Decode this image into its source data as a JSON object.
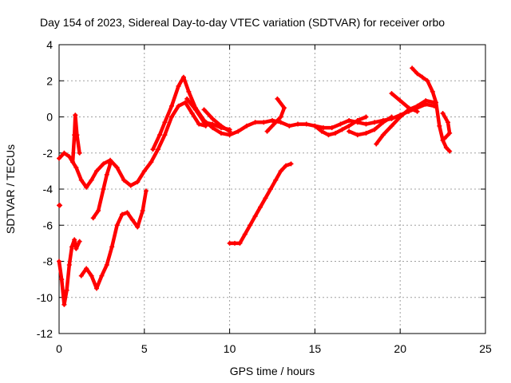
{
  "chart_data": {
    "type": "scatter",
    "title": "Day 154 of 2023, Sidereal Day-to-day VTEC variation (SDTVAR) for receiver orbo",
    "xlabel": "GPS time / hours",
    "ylabel": "SDTVAR / TECUs",
    "xlim": [
      0,
      25
    ],
    "ylim": [
      -12,
      4
    ],
    "xticks": [
      "0",
      "5",
      "10",
      "15",
      "20",
      "25"
    ],
    "yticks": [
      "4",
      "2",
      "0",
      "-2",
      "-4",
      "-6",
      "-8",
      "-10",
      "-12"
    ],
    "grid": true,
    "marker_color": "#ff0000",
    "series": [
      {
        "values": [
          [
            0,
            -4.9
          ],
          [
            0.05,
            -4.9
          ]
        ]
      },
      {
        "values": [
          [
            0,
            -2.3
          ],
          [
            0.3,
            -2.0
          ],
          [
            0.6,
            -2.2
          ],
          [
            1.0,
            -2.8
          ],
          [
            1.3,
            -3.5
          ],
          [
            1.6,
            -3.9
          ],
          [
            1.9,
            -3.5
          ],
          [
            2.2,
            -3.0
          ],
          [
            2.6,
            -2.6
          ],
          [
            3.0,
            -2.4
          ],
          [
            3.4,
            -2.8
          ],
          [
            3.8,
            -3.5
          ],
          [
            4.2,
            -3.8
          ],
          [
            4.6,
            -3.6
          ],
          [
            5.0,
            -3.0
          ],
          [
            5.4,
            -2.5
          ],
          [
            5.8,
            -1.8
          ],
          [
            6.2,
            -1.0
          ],
          [
            6.6,
            0.0
          ],
          [
            7.0,
            0.6
          ],
          [
            7.4,
            0.8
          ],
          [
            7.8,
            0.2
          ],
          [
            8.2,
            -0.4
          ],
          [
            8.6,
            -0.5
          ]
        ]
      },
      {
        "values": [
          [
            0.0,
            -8.0
          ],
          [
            0.15,
            -9.0
          ],
          [
            0.3,
            -10.4
          ],
          [
            0.45,
            -9.6
          ],
          [
            0.6,
            -8.2
          ],
          [
            0.75,
            -7.2
          ],
          [
            0.9,
            -6.8
          ],
          [
            1.0,
            -7.3
          ],
          [
            1.2,
            -6.9
          ]
        ]
      },
      {
        "values": [
          [
            0.8,
            -2.5
          ],
          [
            0.9,
            -1.0
          ],
          [
            0.95,
            0.1
          ],
          [
            1.05,
            -1.0
          ],
          [
            1.2,
            -2.0
          ]
        ]
      },
      {
        "values": [
          [
            1.3,
            -8.8
          ],
          [
            1.6,
            -8.4
          ],
          [
            1.9,
            -8.8
          ],
          [
            2.2,
            -9.5
          ],
          [
            2.5,
            -8.8
          ],
          [
            2.8,
            -8.2
          ],
          [
            3.1,
            -7.2
          ],
          [
            3.4,
            -6.0
          ],
          [
            3.7,
            -5.4
          ],
          [
            4.0,
            -5.3
          ],
          [
            4.3,
            -5.7
          ],
          [
            4.6,
            -6.1
          ],
          [
            4.9,
            -5.2
          ],
          [
            5.1,
            -4.1
          ]
        ]
      },
      {
        "values": [
          [
            2.0,
            -5.6
          ],
          [
            2.3,
            -5.2
          ],
          [
            2.6,
            -4.0
          ],
          [
            2.8,
            -3.2
          ],
          [
            3.0,
            -2.6
          ]
        ]
      },
      {
        "values": [
          [
            5.5,
            -1.8
          ],
          [
            5.9,
            -1.0
          ],
          [
            6.2,
            -0.3
          ],
          [
            6.6,
            0.6
          ],
          [
            7.0,
            1.7
          ],
          [
            7.3,
            2.2
          ],
          [
            7.6,
            1.4
          ],
          [
            8.0,
            0.5
          ],
          [
            8.5,
            -0.2
          ],
          [
            9.0,
            -0.6
          ],
          [
            9.5,
            -0.9
          ],
          [
            10.0,
            -1.0
          ],
          [
            10.5,
            -0.8
          ],
          [
            11.0,
            -0.5
          ],
          [
            11.5,
            -0.3
          ],
          [
            12.0,
            -0.3
          ],
          [
            12.5,
            -0.2
          ],
          [
            13.0,
            -0.3
          ],
          [
            13.5,
            -0.5
          ],
          [
            14.0,
            -0.4
          ],
          [
            14.5,
            -0.4
          ],
          [
            15.0,
            -0.5
          ],
          [
            15.5,
            -0.6
          ],
          [
            16.0,
            -0.6
          ],
          [
            16.5,
            -0.4
          ],
          [
            17.0,
            -0.2
          ],
          [
            17.5,
            -0.3
          ],
          [
            18.0,
            -0.4
          ],
          [
            18.5,
            -0.3
          ],
          [
            19.0,
            -0.2
          ],
          [
            19.5,
            -0.1
          ],
          [
            20.0,
            0.1
          ],
          [
            20.5,
            0.3
          ],
          [
            21.0,
            0.5
          ],
          [
            21.5,
            0.7
          ],
          [
            22.0,
            0.6
          ]
        ]
      },
      {
        "values": [
          [
            7.5,
            1.0
          ],
          [
            8.0,
            0.4
          ],
          [
            8.5,
            -0.3
          ],
          [
            9.0,
            -0.4
          ],
          [
            9.5,
            -0.6
          ],
          [
            10.0,
            -0.7
          ]
        ]
      },
      {
        "values": [
          [
            8.5,
            0.4
          ],
          [
            9.0,
            -0.1
          ],
          [
            9.5,
            -0.5
          ],
          [
            10.0,
            -0.8
          ]
        ]
      },
      {
        "values": [
          [
            10.0,
            -7.0
          ],
          [
            10.3,
            -7.0
          ],
          [
            10.6,
            -7.0
          ],
          [
            10.9,
            -6.5
          ],
          [
            11.2,
            -6.0
          ],
          [
            11.5,
            -5.5
          ],
          [
            11.8,
            -5.0
          ],
          [
            12.1,
            -4.5
          ],
          [
            12.4,
            -4.0
          ],
          [
            12.7,
            -3.5
          ],
          [
            13.0,
            -3.0
          ],
          [
            13.3,
            -2.7
          ],
          [
            13.6,
            -2.6
          ]
        ]
      },
      {
        "values": [
          [
            12.2,
            -0.8
          ],
          [
            12.6,
            -0.4
          ],
          [
            13.0,
            0.0
          ],
          [
            13.2,
            0.5
          ],
          [
            12.8,
            1.0
          ]
        ]
      },
      {
        "values": [
          [
            15.0,
            -0.5
          ],
          [
            15.4,
            -0.8
          ],
          [
            15.8,
            -1.0
          ],
          [
            16.2,
            -0.9
          ],
          [
            16.6,
            -0.7
          ],
          [
            17.0,
            -0.5
          ],
          [
            17.5,
            -0.2
          ],
          [
            18.0,
            0.0
          ]
        ]
      },
      {
        "values": [
          [
            17.0,
            -0.8
          ],
          [
            17.5,
            -1.0
          ],
          [
            18.0,
            -0.9
          ],
          [
            18.5,
            -0.7
          ],
          [
            19.0,
            -0.3
          ],
          [
            19.5,
            0.0
          ]
        ]
      },
      {
        "values": [
          [
            18.6,
            -1.5
          ],
          [
            19.0,
            -1.0
          ],
          [
            19.5,
            -0.5
          ],
          [
            20.0,
            0.0
          ],
          [
            20.5,
            0.4
          ],
          [
            21.0,
            0.6
          ],
          [
            21.5,
            0.9
          ],
          [
            22.0,
            0.8
          ]
        ]
      },
      {
        "values": [
          [
            19.5,
            1.3
          ],
          [
            20.0,
            0.9
          ],
          [
            20.5,
            0.5
          ],
          [
            21.0,
            0.3
          ]
        ]
      },
      {
        "values": [
          [
            20.7,
            2.7
          ],
          [
            21.0,
            2.4
          ],
          [
            21.3,
            2.2
          ],
          [
            21.6,
            2.0
          ],
          [
            21.9,
            1.4
          ],
          [
            22.1,
            0.8
          ],
          [
            22.3,
            -0.5
          ],
          [
            22.5,
            -1.3
          ],
          [
            22.7,
            -1.7
          ],
          [
            22.9,
            -1.9
          ]
        ]
      },
      {
        "values": [
          [
            22.5,
            0.2
          ],
          [
            22.8,
            -0.3
          ],
          [
            22.9,
            -0.9
          ],
          [
            22.6,
            -1.2
          ]
        ]
      }
    ]
  }
}
